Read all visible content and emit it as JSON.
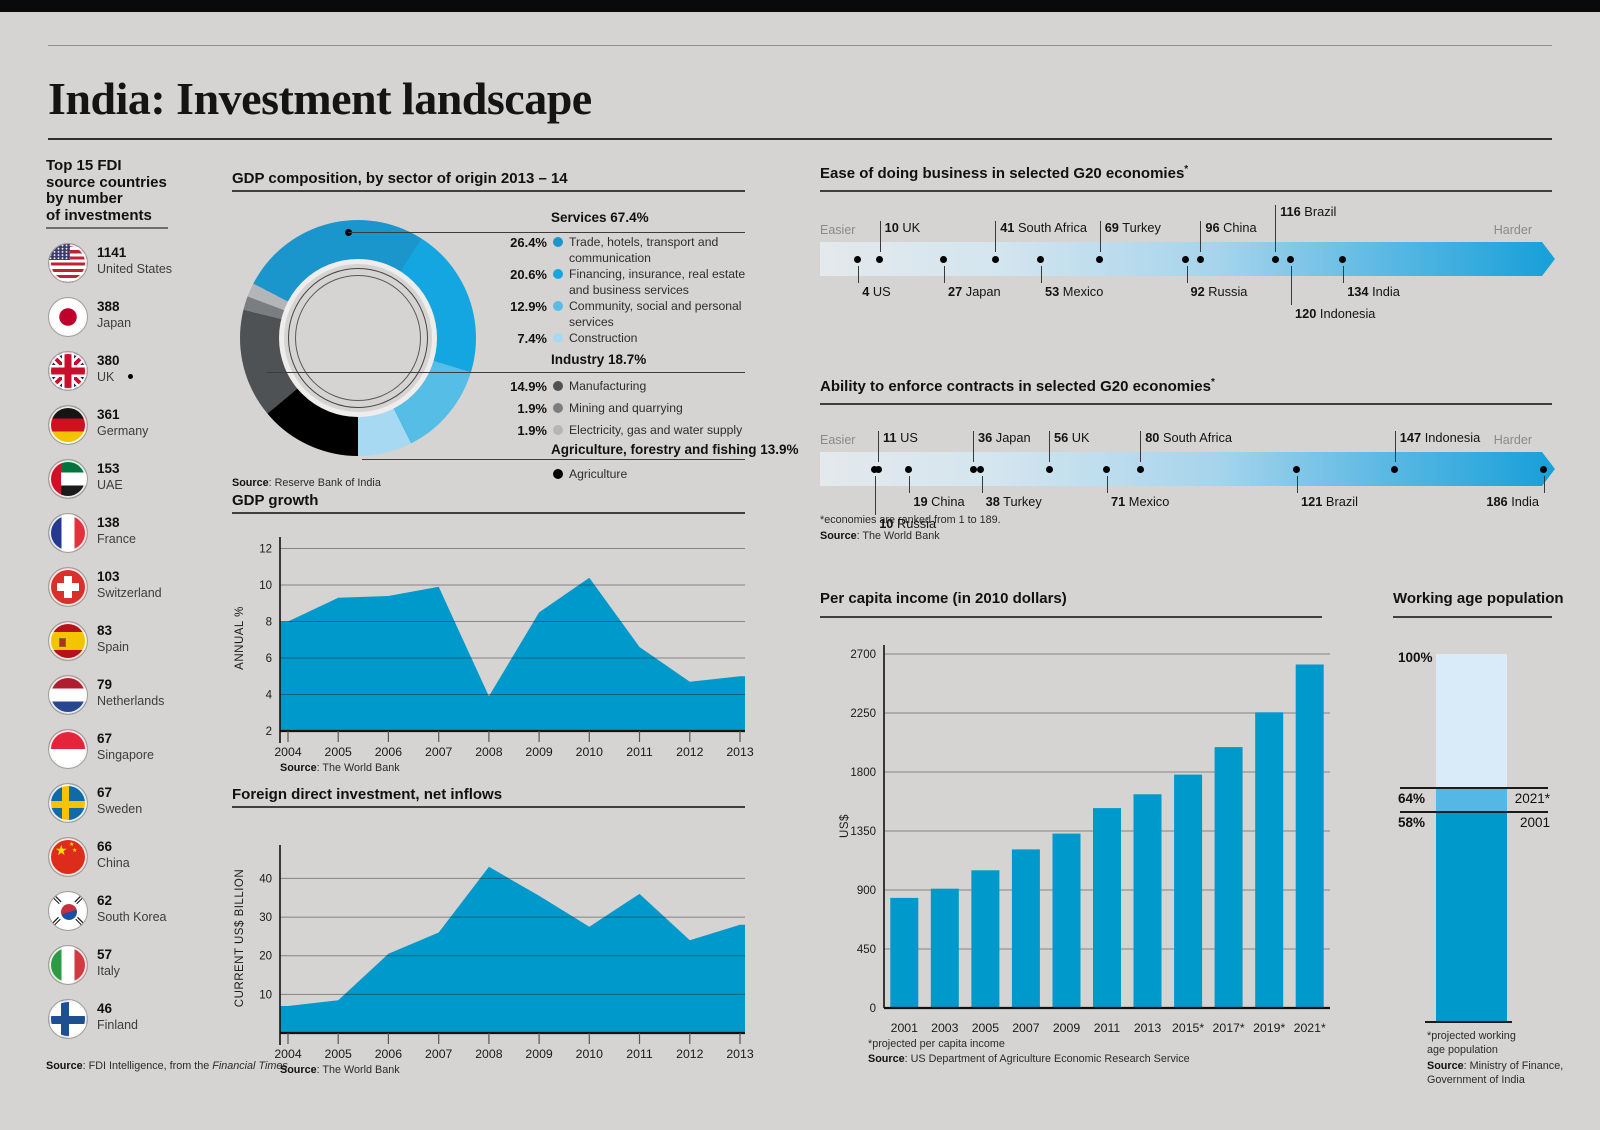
{
  "page": {
    "title": "India: Investment landscape"
  },
  "sidebar": {
    "title_lines": [
      "Top 15 FDI",
      "source countries",
      "by number",
      "of investments"
    ],
    "items": [
      {
        "flag": "us",
        "count": "1141",
        "country": "United States"
      },
      {
        "flag": "japan",
        "count": "388",
        "country": "Japan"
      },
      {
        "flag": "uk",
        "count": "380",
        "country": "UK"
      },
      {
        "flag": "germany",
        "count": "361",
        "country": "Germany"
      },
      {
        "flag": "uae",
        "count": "153",
        "country": "UAE"
      },
      {
        "flag": "france",
        "count": "138",
        "country": "France"
      },
      {
        "flag": "switzerland",
        "count": "103",
        "country": "Switzerland"
      },
      {
        "flag": "spain",
        "count": "83",
        "country": "Spain"
      },
      {
        "flag": "netherlands",
        "count": "79",
        "country": "Netherlands"
      },
      {
        "flag": "singapore",
        "count": "67",
        "country": "Singapore"
      },
      {
        "flag": "sweden",
        "count": "67",
        "country": "Sweden"
      },
      {
        "flag": "china",
        "count": "66",
        "country": "China"
      },
      {
        "flag": "south-korea",
        "count": "62",
        "country": "South Korea"
      },
      {
        "flag": "italy",
        "count": "57",
        "country": "Italy"
      },
      {
        "flag": "finland",
        "count": "46",
        "country": "Finland"
      }
    ],
    "source": {
      "label": "Source",
      "text": ": FDI Intelligence, from the ",
      "italic": "Financial Times"
    }
  },
  "gdp_composition": {
    "title": "GDP composition, by sector of origin 2013 – 14",
    "groups": [
      {
        "header": "Services 67.4%",
        "items": [
          {
            "pct": "26.4%",
            "label": "Trade, hotels, transport and communication",
            "color": "#1b96cc"
          },
          {
            "pct": "20.6%",
            "label": "Financing, insurance, real estate and business services",
            "color": "#14a6e0"
          },
          {
            "pct": "12.9%",
            "label": "Community, social and personal services",
            "color": "#56bde6"
          },
          {
            "pct": "7.4%",
            "label": "Construction",
            "color": "#a8d9f2"
          }
        ]
      },
      {
        "header": "Industry 18.7%",
        "items": [
          {
            "pct": "14.9%",
            "label": "Manufacturing",
            "color": "#4f5254"
          },
          {
            "pct": "1.9%",
            "label": "Mining and quarrying",
            "color": "#7b7e81"
          },
          {
            "pct": "1.9%",
            "label": "Electricity, gas and water supply",
            "color": "#b3b5b7"
          }
        ]
      },
      {
        "header": "Agriculture, forestry and fishing 13.9%",
        "items": [
          {
            "pct": "",
            "label": "Agriculture",
            "color": "#000000"
          }
        ]
      }
    ],
    "source": {
      "label": "Source",
      "text": ": Reserve Bank of India"
    }
  },
  "gdp_growth": {
    "title": "GDP growth",
    "ylabel": "ANNUAL %",
    "source": {
      "label": "Source",
      "text": ": The World Bank"
    }
  },
  "fdi": {
    "title": "Foreign direct investment, net inflows",
    "ylabel": "CURRENT US$ BILLION",
    "source": {
      "label": "Source",
      "text": ": The World Bank"
    }
  },
  "ease_business": {
    "title": "Ease of doing business in selected G20 economies",
    "sup": "*",
    "easier": "Easier",
    "harder": "Harder",
    "points": [
      {
        "rank": 4,
        "country": "US",
        "pos": "below"
      },
      {
        "rank": 10,
        "country": "UK",
        "pos": "above"
      },
      {
        "rank": 27,
        "country": "Japan",
        "pos": "below"
      },
      {
        "rank": 41,
        "country": "South Africa",
        "pos": "above"
      },
      {
        "rank": 53,
        "country": "Mexico",
        "pos": "below"
      },
      {
        "rank": 69,
        "country": "Turkey",
        "pos": "above"
      },
      {
        "rank": 92,
        "country": "Russia",
        "pos": "below"
      },
      {
        "rank": 96,
        "country": "China",
        "pos": "above"
      },
      {
        "rank": 116,
        "country": "Brazil",
        "pos": "above-high"
      },
      {
        "rank": 120,
        "country": "Indonesia",
        "pos": "below-low"
      },
      {
        "rank": 134,
        "country": "India",
        "pos": "below"
      }
    ]
  },
  "enforce_contracts": {
    "title": "Ability to enforce contracts in selected G20 economies",
    "sup": "*",
    "easier": "Easier",
    "harder": "Harder",
    "points": [
      {
        "rank": 10,
        "country": "Russia",
        "pos": "below-low"
      },
      {
        "rank": 11,
        "country": "US",
        "pos": "above"
      },
      {
        "rank": 19,
        "country": "China",
        "pos": "below"
      },
      {
        "rank": 36,
        "country": "Japan",
        "pos": "above"
      },
      {
        "rank": 38,
        "country": "Turkey",
        "pos": "below"
      },
      {
        "rank": 56,
        "country": "UK",
        "pos": "above"
      },
      {
        "rank": 71,
        "country": "Mexico",
        "pos": "below"
      },
      {
        "rank": 80,
        "country": "South Africa",
        "pos": "above"
      },
      {
        "rank": 121,
        "country": "Brazil",
        "pos": "below"
      },
      {
        "rank": 147,
        "country": "Indonesia",
        "pos": "above"
      },
      {
        "rank": 186,
        "country": "India",
        "pos": "below",
        "align": "right"
      }
    ],
    "footnote": "*economies are ranked from 1 to 189.",
    "source": {
      "label": "Source",
      "text": ": The World Bank"
    }
  },
  "per_capita": {
    "title": "Per capita income (in 2010 dollars)",
    "ylabel": "US$",
    "footnote": "*projected per capita income",
    "source": {
      "label": "Source",
      "text": ": US Department of Agriculture Economic Research Service"
    }
  },
  "working_age": {
    "title": "Working age population",
    "top_label": "100%",
    "mid_label": "64%",
    "mid_year": "2021*",
    "low_label": "58%",
    "low_year": "2001",
    "footnote_lines": [
      "*projected working",
      "age population"
    ],
    "source": {
      "label": "Source",
      "text": ": Ministry of Finance,",
      "text2": "Government of India"
    }
  },
  "colors": {
    "accent_blue": "#0099cb",
    "band_gradient_end": "#1ba1d9",
    "background": "#d5d4d2",
    "working_age_pale": "#d9eaf8",
    "working_age_mid": "#55b7e6"
  },
  "chart_data": [
    {
      "id": "gdp_composition",
      "type": "pie",
      "title": "GDP composition, by sector of origin 2013 – 14",
      "segments": [
        {
          "label": "Trade, hotels, transport and communication",
          "pct": 26.4,
          "color": "#1b96cc"
        },
        {
          "label": "Financing, insurance, real estate and business services",
          "pct": 20.6,
          "color": "#14a6e0"
        },
        {
          "label": "Community, social and personal services",
          "pct": 12.9,
          "color": "#56bde6"
        },
        {
          "label": "Construction",
          "pct": 7.4,
          "color": "#a8d9f2"
        },
        {
          "label": "Agriculture",
          "pct": 13.9,
          "color": "#000000"
        },
        {
          "label": "Manufacturing",
          "pct": 14.9,
          "color": "#4f5254"
        },
        {
          "label": "Mining and quarrying",
          "pct": 1.9,
          "color": "#7b7e81"
        },
        {
          "label": "Electricity, gas and water supply",
          "pct": 1.9,
          "color": "#b3b5b7"
        }
      ],
      "groups": [
        {
          "label": "Services",
          "pct": 67.4
        },
        {
          "label": "Industry",
          "pct": 18.7
        },
        {
          "label": "Agriculture, forestry and fishing",
          "pct": 13.9
        }
      ],
      "source": "Reserve Bank of India"
    },
    {
      "id": "gdp_growth",
      "type": "area",
      "title": "GDP growth",
      "ylabel": "ANNUAL %",
      "x": [
        2004,
        2005,
        2006,
        2007,
        2008,
        2009,
        2010,
        2011,
        2012,
        2013
      ],
      "y": [
        8.0,
        9.3,
        9.4,
        9.9,
        3.9,
        8.5,
        10.4,
        6.6,
        4.7,
        5.0
      ],
      "yticks": [
        2,
        4,
        6,
        8,
        10,
        12
      ],
      "ylim": [
        2,
        12
      ],
      "source": "The World Bank"
    },
    {
      "id": "fdi_net_inflows",
      "type": "area",
      "title": "Foreign direct investment, net inflows",
      "ylabel": "CURRENT US$ BILLION",
      "x": [
        2004,
        2005,
        2006,
        2007,
        2008,
        2009,
        2010,
        2011,
        2012,
        2013
      ],
      "y": [
        7,
        8.5,
        20.5,
        26,
        43,
        35.5,
        27.5,
        36,
        24,
        28
      ],
      "yticks": [
        10,
        20,
        30,
        40
      ],
      "ylim": [
        0,
        48
      ],
      "source": "The World Bank"
    },
    {
      "id": "ease_of_doing_business",
      "type": "scatter",
      "title": "Ease of doing business in selected G20 economies",
      "xlabel": "rank: 1 (easier) to 189 (harder)",
      "points": [
        {
          "country": "US",
          "rank": 4
        },
        {
          "country": "UK",
          "rank": 10
        },
        {
          "country": "Japan",
          "rank": 27
        },
        {
          "country": "South Africa",
          "rank": 41
        },
        {
          "country": "Mexico",
          "rank": 53
        },
        {
          "country": "Turkey",
          "rank": 69
        },
        {
          "country": "Russia",
          "rank": 92
        },
        {
          "country": "China",
          "rank": 96
        },
        {
          "country": "Brazil",
          "rank": 116
        },
        {
          "country": "Indonesia",
          "rank": 120
        },
        {
          "country": "India",
          "rank": 134
        }
      ]
    },
    {
      "id": "ability_to_enforce_contracts",
      "type": "scatter",
      "title": "Ability to enforce contracts in selected G20 economies",
      "xlabel": "rank: 1 (easier) to 189 (harder)",
      "points": [
        {
          "country": "Russia",
          "rank": 10
        },
        {
          "country": "US",
          "rank": 11
        },
        {
          "country": "China",
          "rank": 19
        },
        {
          "country": "Japan",
          "rank": 36
        },
        {
          "country": "Turkey",
          "rank": 38
        },
        {
          "country": "UK",
          "rank": 56
        },
        {
          "country": "Mexico",
          "rank": 71
        },
        {
          "country": "South Africa",
          "rank": 80
        },
        {
          "country": "Brazil",
          "rank": 121
        },
        {
          "country": "Indonesia",
          "rank": 147
        },
        {
          "country": "India",
          "rank": 186
        }
      ]
    },
    {
      "id": "per_capita_income",
      "type": "bar",
      "title": "Per capita income (in 2010 dollars)",
      "ylabel": "US$",
      "categories": [
        "2001",
        "2003",
        "2005",
        "2007",
        "2009",
        "2011",
        "2013",
        "2015*",
        "2017*",
        "2019*",
        "2021*"
      ],
      "values": [
        840,
        910,
        1050,
        1210,
        1330,
        1525,
        1630,
        1780,
        1990,
        2255,
        2620
      ],
      "yticks": [
        0,
        450,
        900,
        1350,
        1800,
        2250,
        2700
      ],
      "ylim": [
        0,
        2700
      ],
      "source": "US Department of Agriculture Economic Research Service"
    },
    {
      "id": "working_age_population",
      "type": "bar",
      "title": "Working age population",
      "categories": [
        "2001",
        "2021*"
      ],
      "values": [
        58,
        64
      ],
      "ylim": [
        0,
        100
      ],
      "note": "share of total population; 100% reference column",
      "source": "Ministry of Finance, Government of India"
    }
  ]
}
